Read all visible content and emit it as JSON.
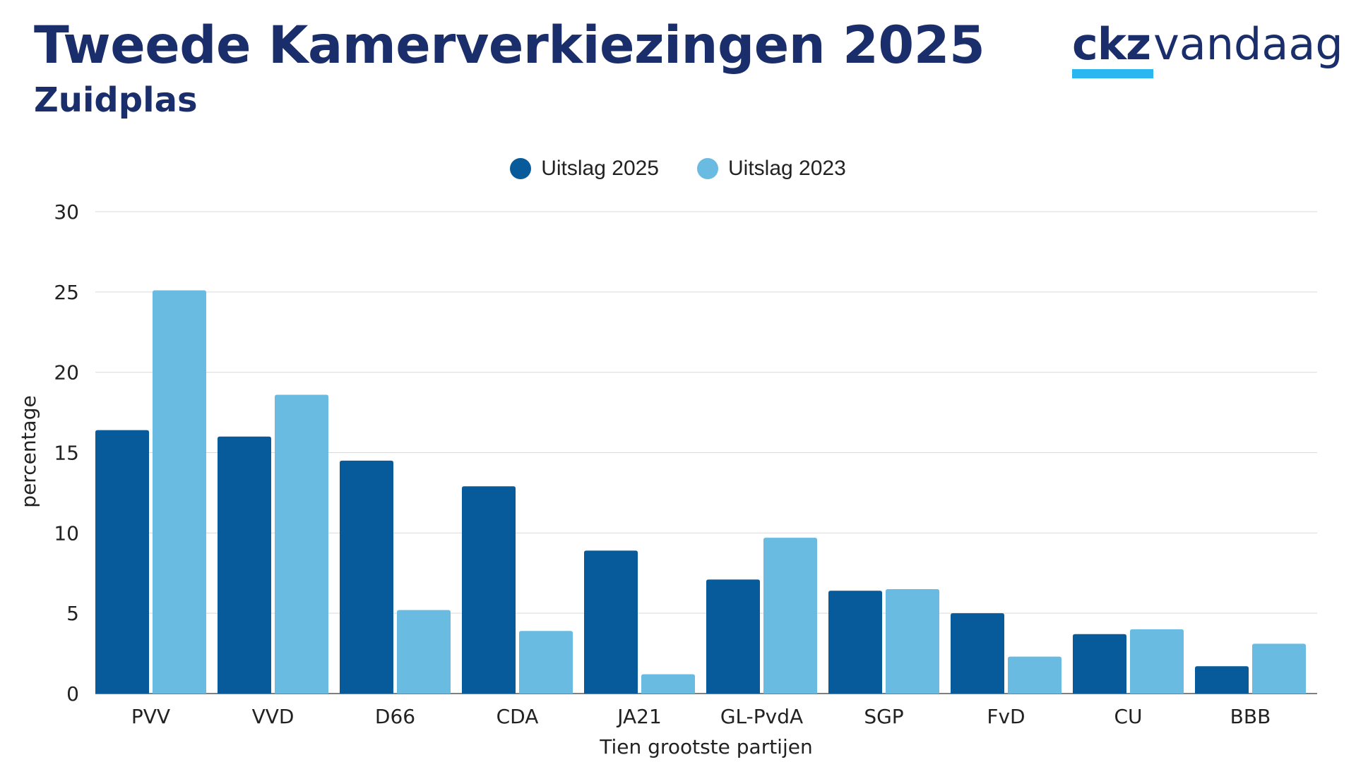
{
  "header": {
    "title": "Tweede Kamerverkiezingen 2025",
    "subtitle": "Zuidplas"
  },
  "logo": {
    "part1": "ckz",
    "part2": "vandaag",
    "accent_color": "#2ab7f0",
    "text_color": "#1a2e6b"
  },
  "chart_data": {
    "type": "bar",
    "title": "Tweede Kamerverkiezingen 2025",
    "subtitle": "Zuidplas",
    "xlabel": "Tien grootste partijen",
    "ylabel": "percentage",
    "ylim": [
      0,
      30
    ],
    "yticks": [
      0,
      5,
      10,
      15,
      20,
      25,
      30
    ],
    "grid": true,
    "legend_position": "top-center",
    "categories": [
      "PVV",
      "VVD",
      "D66",
      "CDA",
      "JA21",
      "GL-PvdA",
      "SGP",
      "FvD",
      "CU",
      "BBB"
    ],
    "series": [
      {
        "name": "Uitslag 2025",
        "color": "#075b9b",
        "values": [
          16.4,
          16.0,
          14.5,
          12.9,
          8.9,
          7.1,
          6.4,
          5.0,
          3.7,
          1.7
        ]
      },
      {
        "name": "Uitslag 2023",
        "color": "#6abbe2",
        "values": [
          25.1,
          18.6,
          5.2,
          3.9,
          1.2,
          9.7,
          6.5,
          2.3,
          4.0,
          3.1
        ]
      }
    ]
  }
}
